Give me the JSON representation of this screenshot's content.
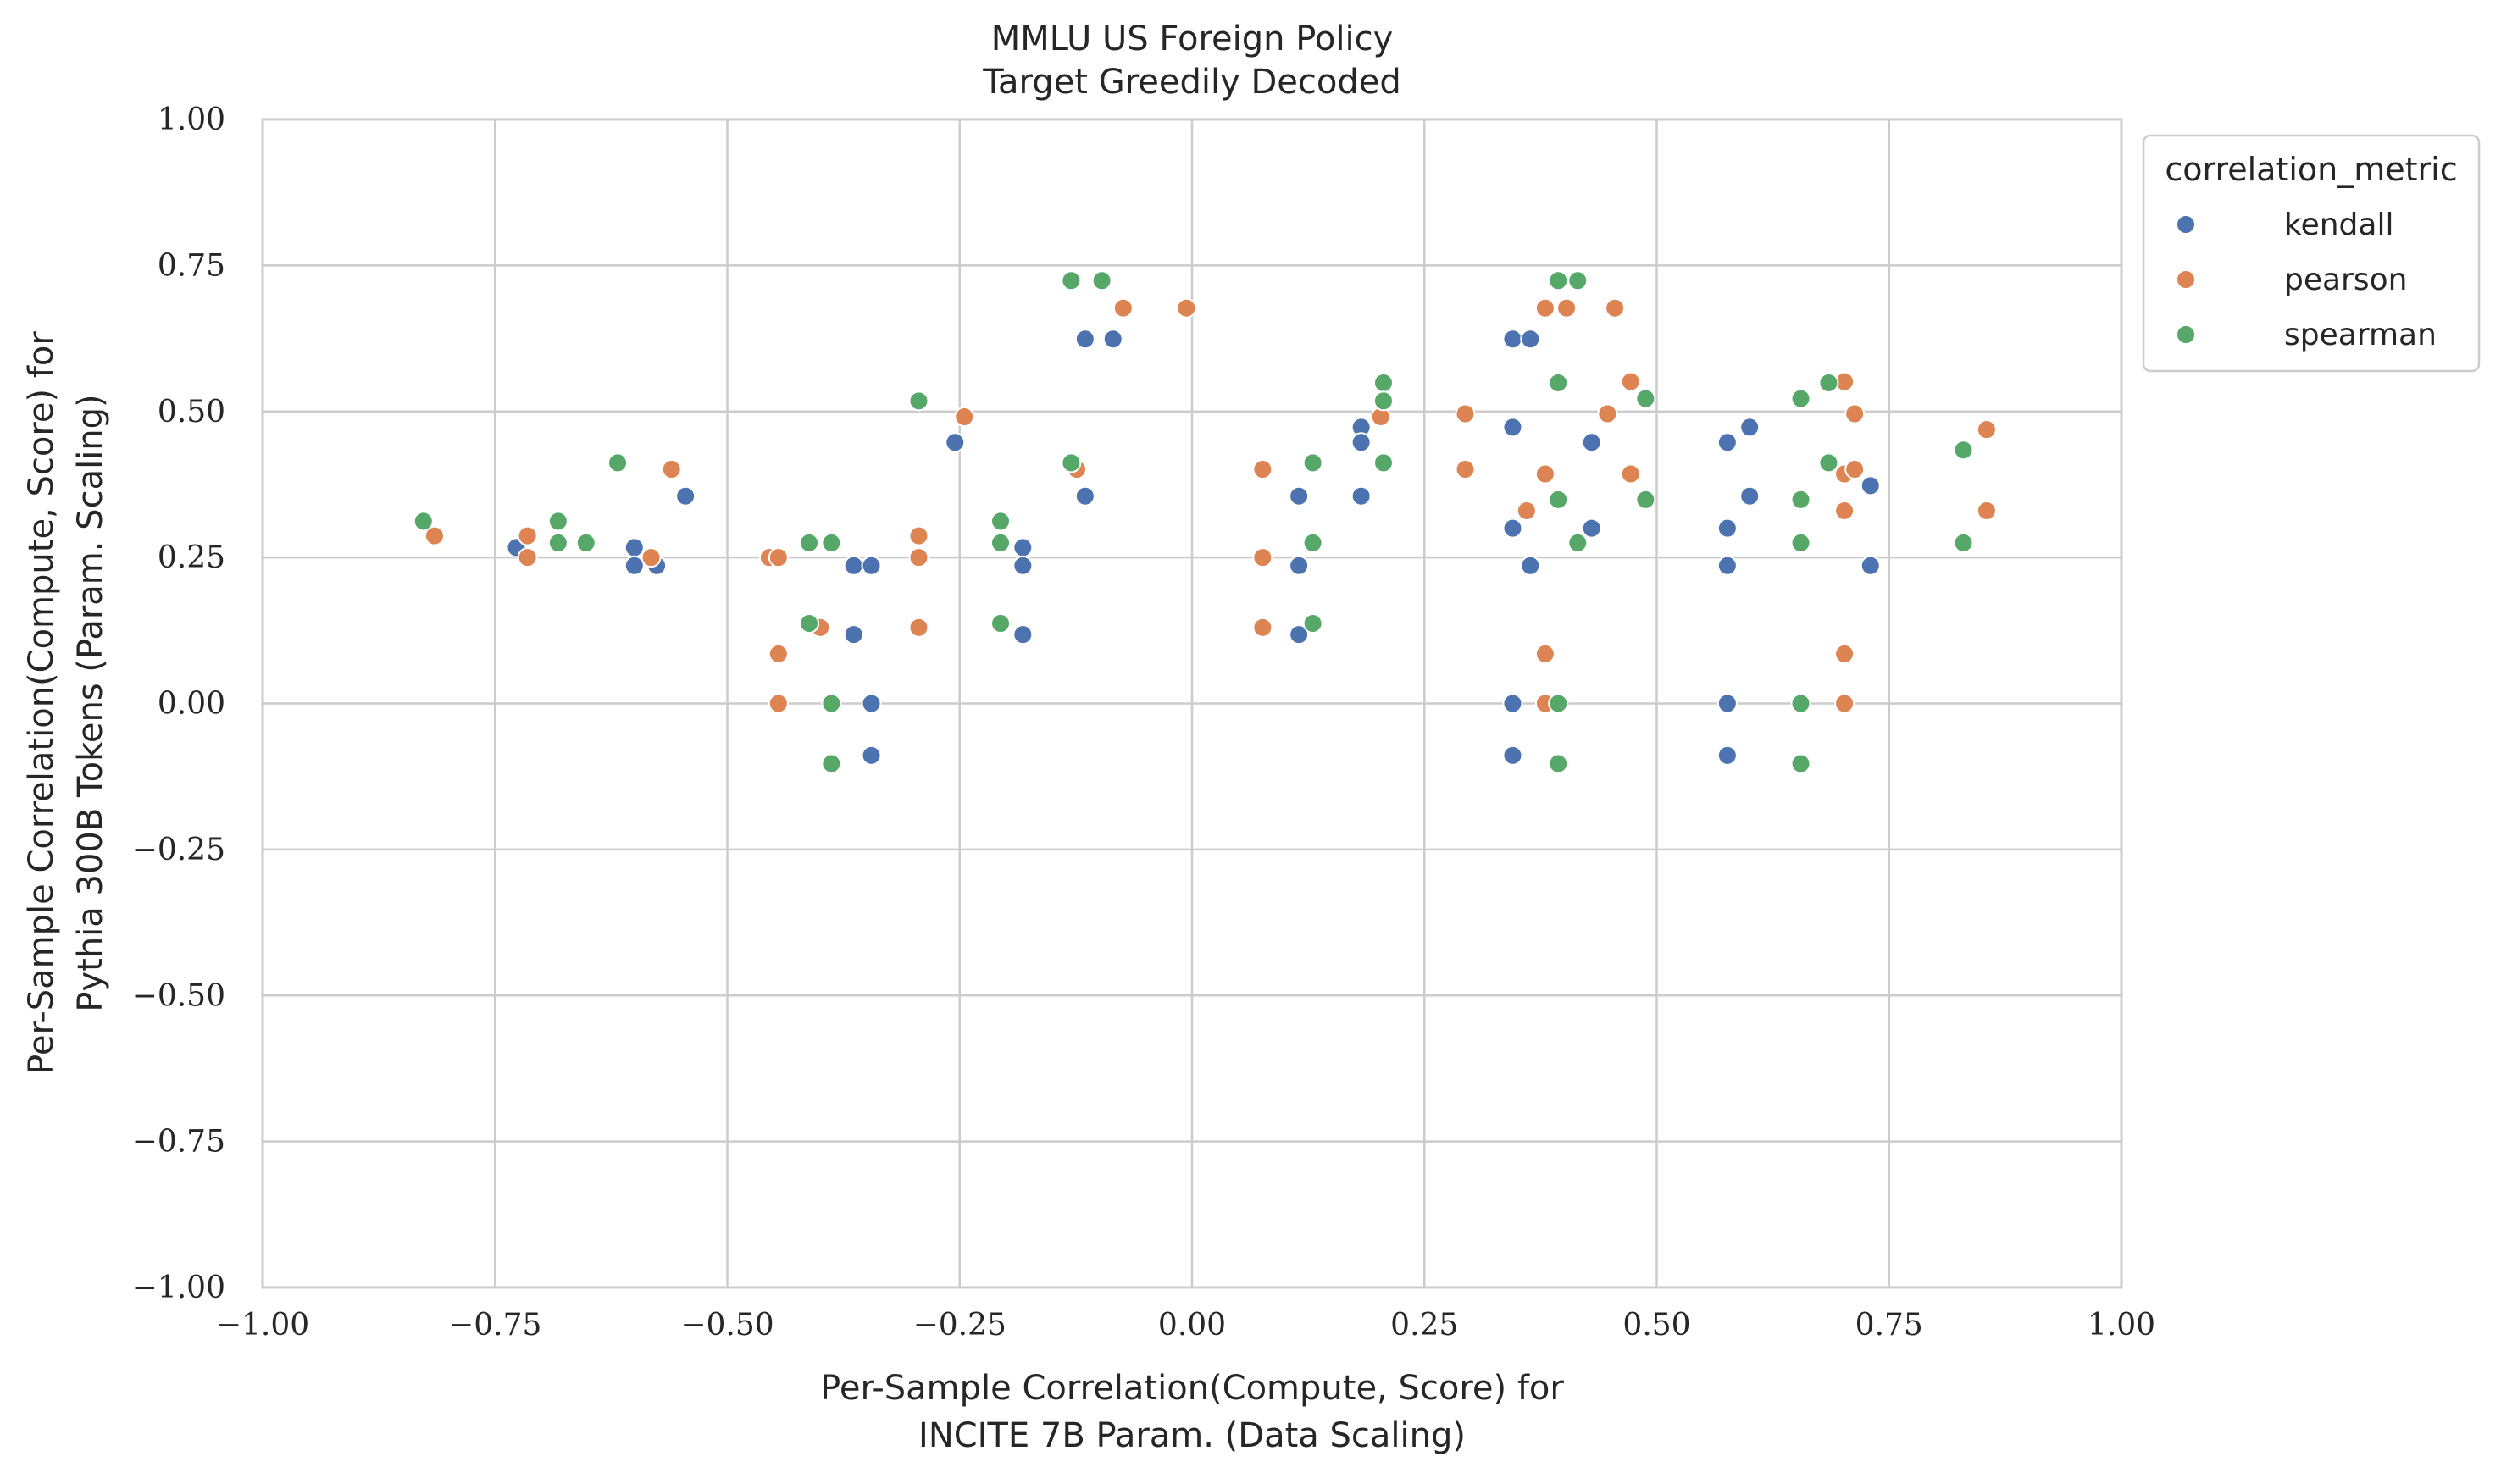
{
  "chart_data": {
    "type": "scatter",
    "title_line1": "MMLU US Foreign Policy",
    "title_line2": "Target Greedily Decoded",
    "xlabel_line1": "Per-Sample Correlation(Compute, Score) for",
    "xlabel_line2": "INCITE 7B Param. (Data Scaling)",
    "ylabel_line1": "Per-Sample Correlation(Compute, Score) for",
    "ylabel_line2": "Pythia 300B Tokens (Param. Scaling)",
    "xlim": [
      -1.0,
      1.0
    ],
    "ylim": [
      -1.0,
      1.0
    ],
    "grid": true,
    "xticks": [
      "−1.00",
      "−0.75",
      "−0.50",
      "−0.25",
      "0.00",
      "0.25",
      "0.50",
      "0.75",
      "1.00"
    ],
    "yticks": [
      "−1.00",
      "−0.75",
      "−0.50",
      "−0.25",
      "0.00",
      "0.25",
      "0.50",
      "0.75",
      "1.00"
    ],
    "legend": {
      "title": "correlation_metric",
      "position": "outside-top-right"
    },
    "series": [
      {
        "name": "kendall",
        "color": "#4c72b0",
        "points": [
          [
            -0.727,
            0.267
          ],
          [
            -0.6,
            0.267
          ],
          [
            -0.6,
            0.236
          ],
          [
            -0.576,
            0.236
          ],
          [
            -0.545,
            0.355
          ],
          [
            -0.364,
            0.236
          ],
          [
            -0.345,
            0.236
          ],
          [
            -0.364,
            0.118
          ],
          [
            -0.345,
            0.0
          ],
          [
            -0.345,
            -0.089
          ],
          [
            -0.255,
            0.447
          ],
          [
            -0.182,
            0.267
          ],
          [
            -0.182,
            0.236
          ],
          [
            -0.182,
            0.118
          ],
          [
            -0.115,
            0.624
          ],
          [
            -0.085,
            0.624
          ],
          [
            -0.115,
            0.355
          ],
          [
            0.115,
            0.355
          ],
          [
            0.115,
            0.236
          ],
          [
            0.115,
            0.118
          ],
          [
            0.182,
            0.473
          ],
          [
            0.182,
            0.447
          ],
          [
            0.182,
            0.355
          ],
          [
            0.345,
            0.624
          ],
          [
            0.364,
            0.624
          ],
          [
            0.345,
            0.473
          ],
          [
            0.345,
            0.3
          ],
          [
            0.364,
            0.236
          ],
          [
            0.345,
            0.0
          ],
          [
            0.345,
            -0.089
          ],
          [
            0.43,
            0.447
          ],
          [
            0.43,
            0.3
          ],
          [
            0.576,
            0.447
          ],
          [
            0.6,
            0.473
          ],
          [
            0.6,
            0.355
          ],
          [
            0.576,
            0.3
          ],
          [
            0.576,
            0.236
          ],
          [
            0.576,
            0.0
          ],
          [
            0.576,
            -0.089
          ],
          [
            0.73,
            0.373
          ],
          [
            0.73,
            0.236
          ]
        ]
      },
      {
        "name": "pearson",
        "color": "#dd8452",
        "points": [
          [
            -0.815,
            0.287
          ],
          [
            -0.715,
            0.287
          ],
          [
            -0.715,
            0.25
          ],
          [
            -0.582,
            0.25
          ],
          [
            -0.56,
            0.401
          ],
          [
            -0.455,
            0.25
          ],
          [
            -0.445,
            0.25
          ],
          [
            -0.445,
            0.085
          ],
          [
            -0.445,
            0.0
          ],
          [
            -0.4,
            0.13
          ],
          [
            -0.294,
            0.287
          ],
          [
            -0.294,
            0.25
          ],
          [
            -0.294,
            0.13
          ],
          [
            -0.245,
            0.491
          ],
          [
            -0.124,
            0.401
          ],
          [
            -0.074,
            0.677
          ],
          [
            -0.006,
            0.677
          ],
          [
            0.076,
            0.401
          ],
          [
            0.076,
            0.25
          ],
          [
            0.076,
            0.13
          ],
          [
            0.203,
            0.491
          ],
          [
            0.294,
            0.496
          ],
          [
            0.294,
            0.401
          ],
          [
            0.36,
            0.33
          ],
          [
            0.38,
            0.677
          ],
          [
            0.403,
            0.677
          ],
          [
            0.38,
            0.393
          ],
          [
            0.38,
            0.085
          ],
          [
            0.38,
            0.0
          ],
          [
            0.455,
            0.677
          ],
          [
            0.447,
            0.496
          ],
          [
            0.472,
            0.551
          ],
          [
            0.472,
            0.393
          ],
          [
            0.702,
            0.551
          ],
          [
            0.713,
            0.496
          ],
          [
            0.702,
            0.393
          ],
          [
            0.713,
            0.401
          ],
          [
            0.702,
            0.33
          ],
          [
            0.702,
            0.085
          ],
          [
            0.702,
            0.0
          ],
          [
            0.855,
            0.469
          ],
          [
            0.855,
            0.33
          ]
        ]
      },
      {
        "name": "spearman",
        "color": "#55a868",
        "points": [
          [
            -0.827,
            0.312
          ],
          [
            -0.682,
            0.312
          ],
          [
            -0.682,
            0.275
          ],
          [
            -0.652,
            0.275
          ],
          [
            -0.618,
            0.412
          ],
          [
            -0.412,
            0.275
          ],
          [
            -0.388,
            0.275
          ],
          [
            -0.412,
            0.137
          ],
          [
            -0.388,
            0.0
          ],
          [
            -0.388,
            -0.103
          ],
          [
            -0.294,
            0.518
          ],
          [
            -0.206,
            0.312
          ],
          [
            -0.206,
            0.275
          ],
          [
            -0.206,
            0.137
          ],
          [
            -0.13,
            0.724
          ],
          [
            -0.097,
            0.724
          ],
          [
            -0.13,
            0.412
          ],
          [
            0.13,
            0.412
          ],
          [
            0.13,
            0.275
          ],
          [
            0.13,
            0.137
          ],
          [
            0.206,
            0.549
          ],
          [
            0.206,
            0.518
          ],
          [
            0.206,
            0.412
          ],
          [
            0.394,
            0.724
          ],
          [
            0.415,
            0.724
          ],
          [
            0.394,
            0.549
          ],
          [
            0.394,
            0.349
          ],
          [
            0.415,
            0.275
          ],
          [
            0.394,
            0.0
          ],
          [
            0.394,
            -0.103
          ],
          [
            0.488,
            0.522
          ],
          [
            0.488,
            0.349
          ],
          [
            0.655,
            0.522
          ],
          [
            0.685,
            0.549
          ],
          [
            0.685,
            0.412
          ],
          [
            0.655,
            0.349
          ],
          [
            0.655,
            0.275
          ],
          [
            0.655,
            0.0
          ],
          [
            0.655,
            -0.103
          ],
          [
            0.83,
            0.434
          ],
          [
            0.83,
            0.275
          ]
        ]
      }
    ]
  }
}
